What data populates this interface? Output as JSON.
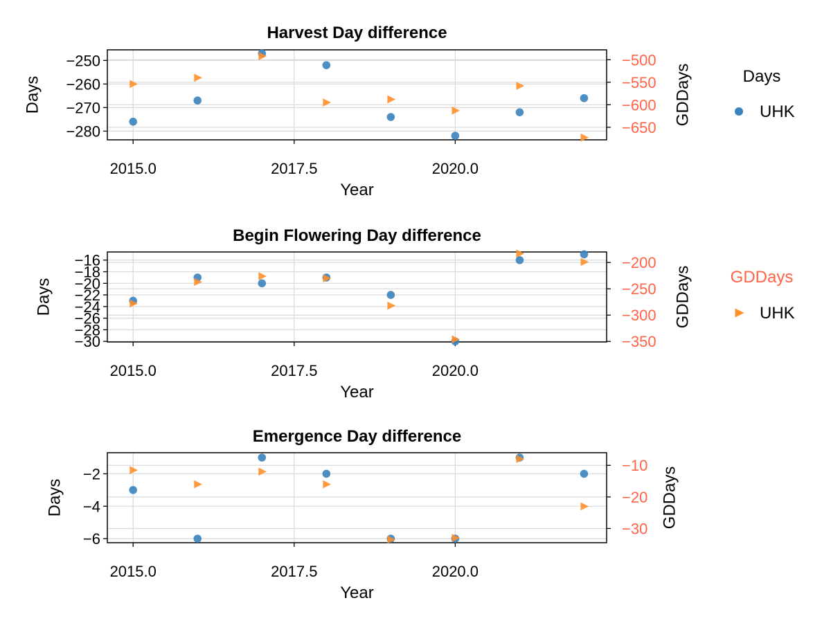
{
  "colors": {
    "days_series": "#3b83bd",
    "gddays_series": "#ff8f2a",
    "right_axis": "#ff6347",
    "grid": "#d9d9d9",
    "frame": "#000000"
  },
  "legends": [
    {
      "title": "Days",
      "title_color": "#000000",
      "marker": "circle",
      "color": "#3b83bd",
      "label": "UHK"
    },
    {
      "title": "GDDays",
      "title_color": "#ff6347",
      "marker": "triangle-right",
      "color": "#ff8f2a",
      "label": "UHK"
    }
  ],
  "chart_data": [
    {
      "type": "scatter",
      "title": "Harvest Day difference",
      "xlabel": "Year",
      "ylabel": "Days",
      "y2label": "GDDays",
      "xlim": [
        2014.6,
        2022.35
      ],
      "ylim": [
        -283.7,
        -245.5
      ],
      "y2lim": [
        -678,
        -478
      ],
      "xticks": [
        2015.0,
        2017.5,
        2020.0
      ],
      "xtick_labels": [
        "2015.0",
        "2017.5",
        "2020.0"
      ],
      "yticks": [
        -250,
        -260,
        -270,
        -280
      ],
      "ytick_labels": [
        "−250",
        "−260",
        "−270",
        "−280"
      ],
      "y2ticks": [
        -500,
        -550,
        -600,
        -650
      ],
      "y2tick_labels": [
        "−500",
        "−550",
        "−600",
        "−650"
      ],
      "x": [
        2015,
        2016,
        2017,
        2018,
        2019,
        2020,
        2021,
        2022
      ],
      "series": [
        {
          "name": "UHK",
          "axis": "left",
          "marker": "circle",
          "values": [
            -276,
            -267,
            -247,
            -252,
            -274,
            -282,
            -272,
            -266
          ]
        },
        {
          "name": "UHK",
          "axis": "right",
          "marker": "triangle-right",
          "values": [
            -554,
            -540,
            -492,
            -595,
            -588,
            -613,
            -558,
            -673
          ]
        }
      ]
    },
    {
      "type": "scatter",
      "title": "Begin Flowering Day difference",
      "xlabel": "Year",
      "ylabel": "Days",
      "y2label": "GDDays",
      "xlim": [
        2014.6,
        2022.35
      ],
      "ylim": [
        -30.1,
        -14.6
      ],
      "y2lim": [
        -351,
        -180
      ],
      "xticks": [
        2015.0,
        2017.5,
        2020.0
      ],
      "xtick_labels": [
        "2015.0",
        "2017.5",
        "2020.0"
      ],
      "yticks": [
        -16,
        -18,
        -20,
        -22,
        -24,
        -26,
        -28,
        -30
      ],
      "ytick_labels": [
        "−16",
        "−18",
        "−20",
        "−22",
        "−24",
        "−26",
        "−28",
        "−30"
      ],
      "y2ticks": [
        -200,
        -250,
        -300,
        -350
      ],
      "y2tick_labels": [
        "−200",
        "−250",
        "−300",
        "−350"
      ],
      "x": [
        2015,
        2016,
        2017,
        2018,
        2019,
        2020,
        2021,
        2022
      ],
      "series": [
        {
          "name": "UHK",
          "axis": "left",
          "marker": "circle",
          "values": [
            -23,
            -19,
            -20,
            -19,
            -22,
            -30,
            -16,
            -15
          ]
        },
        {
          "name": "UHK",
          "axis": "right",
          "marker": "triangle-right",
          "values": [
            -278,
            -237,
            -226,
            -230,
            -282,
            -346,
            -183,
            -199
          ]
        }
      ]
    },
    {
      "type": "scatter",
      "title": "Emergence Day difference",
      "xlabel": "Year",
      "ylabel": "Days",
      "y2label": "GDDays",
      "xlim": [
        2014.6,
        2022.35
      ],
      "ylim": [
        -6.25,
        -0.7
      ],
      "y2lim": [
        -34.5,
        -6
      ],
      "xticks": [
        2015.0,
        2017.5,
        2020.0
      ],
      "xtick_labels": [
        "2015.0",
        "2017.5",
        "2020.0"
      ],
      "yticks": [
        -2,
        -4,
        -6
      ],
      "ytick_labels": [
        "−2",
        "−4",
        "−6"
      ],
      "y2ticks": [
        -10,
        -20,
        -30
      ],
      "y2tick_labels": [
        "−10",
        "−20",
        "−30"
      ],
      "x": [
        2015,
        2016,
        2017,
        2018,
        2019,
        2020,
        2021,
        2022
      ],
      "series": [
        {
          "name": "UHK",
          "axis": "left",
          "marker": "circle",
          "values": [
            -3,
            -6,
            -1,
            -2,
            -6,
            -6,
            -1,
            -2
          ]
        },
        {
          "name": "UHK",
          "axis": "right",
          "marker": "triangle-right",
          "values": [
            -11.5,
            -16,
            -12,
            -16,
            -33.5,
            -33,
            -8,
            -23
          ]
        }
      ]
    }
  ]
}
